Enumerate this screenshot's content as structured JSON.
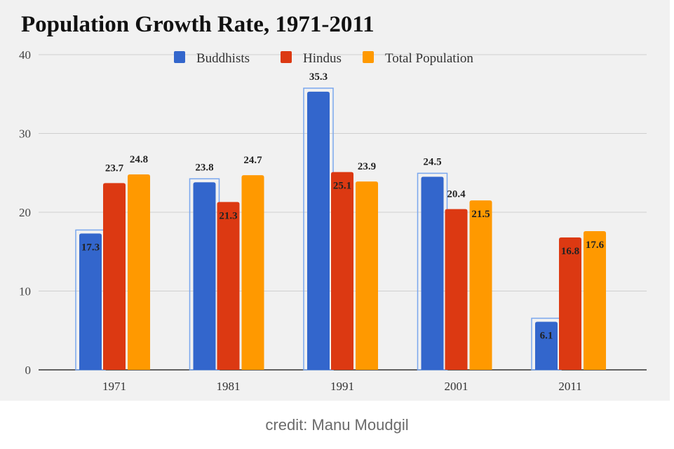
{
  "chart_data": {
    "type": "bar",
    "title": "Population Growth Rate, 1971-2011",
    "xlabel": "",
    "ylabel": "",
    "ylim": [
      0,
      40
    ],
    "yticks": [
      0,
      10,
      20,
      30,
      40
    ],
    "grid": true,
    "legend_position": "top-center",
    "categories": [
      "1971",
      "1981",
      "1991",
      "2001",
      "2011"
    ],
    "series": [
      {
        "name": "Buddhists",
        "color": "#3366cc",
        "values": [
          17.3,
          23.8,
          35.3,
          24.5,
          6.1
        ]
      },
      {
        "name": "Hindus",
        "color": "#dc3912",
        "values": [
          23.7,
          21.3,
          25.1,
          20.4,
          16.8
        ]
      },
      {
        "name": "Total Population",
        "color": "#ff9900",
        "values": [
          24.8,
          24.7,
          23.9,
          21.5,
          17.6
        ]
      }
    ]
  },
  "credit": "credit: Manu Moudgil"
}
